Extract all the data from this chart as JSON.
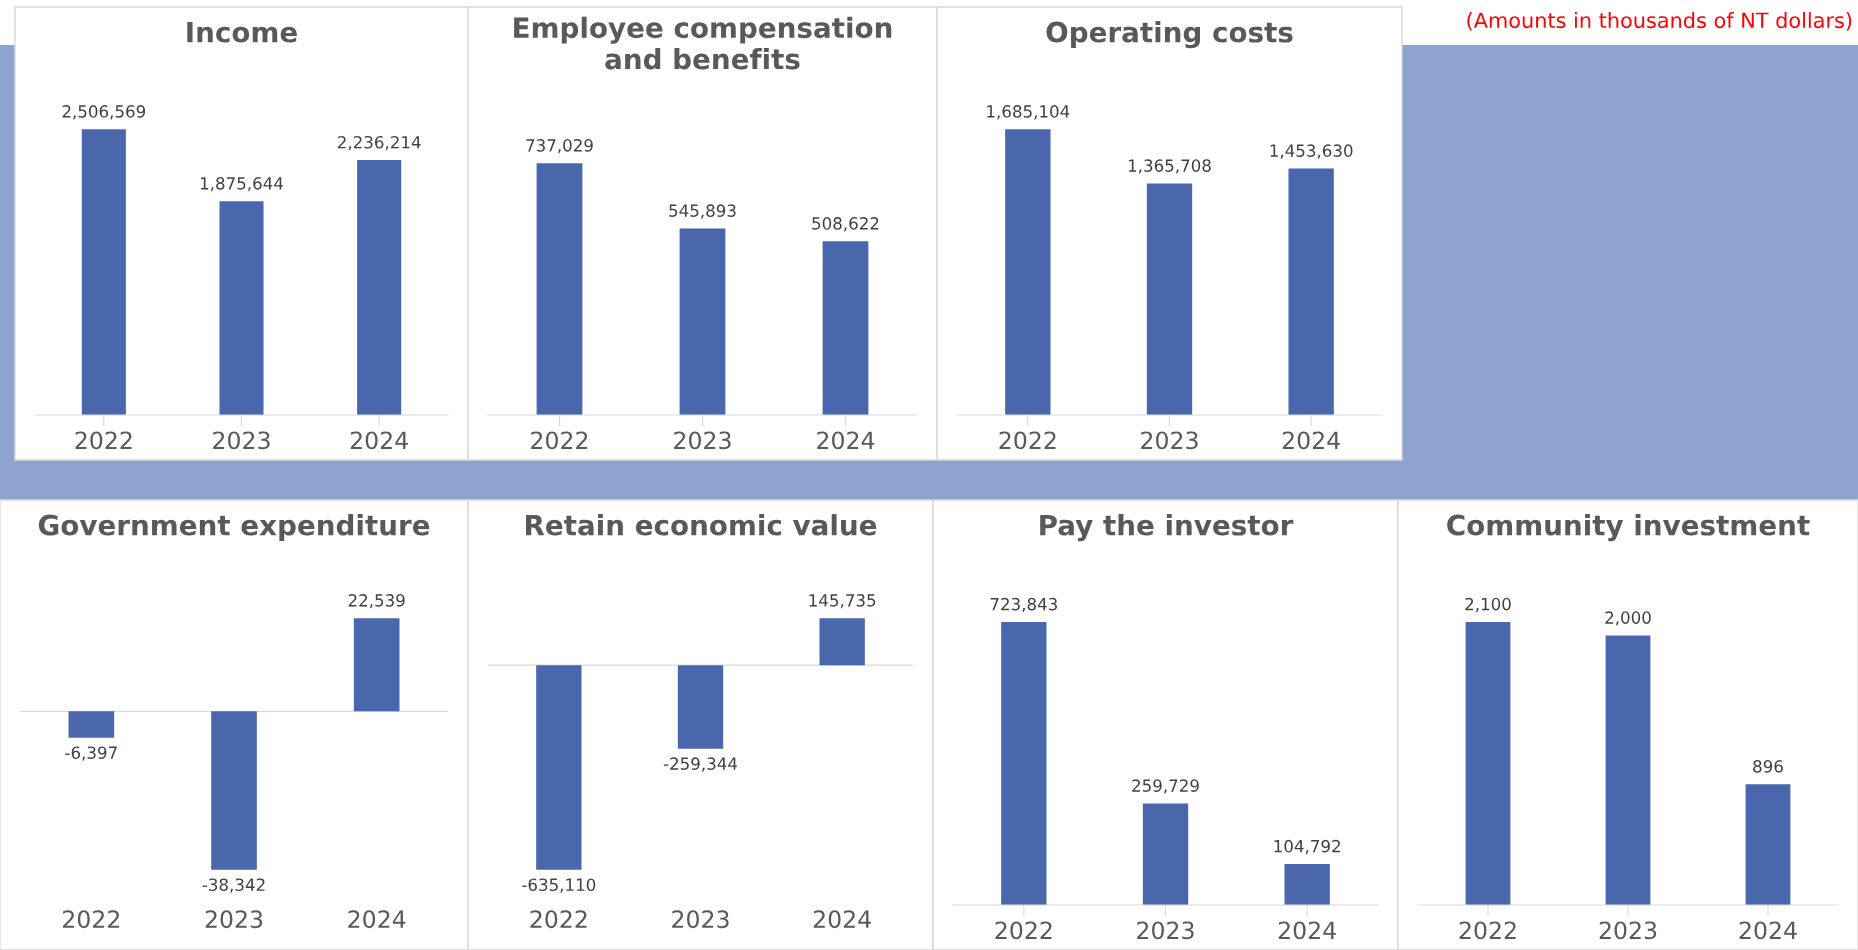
{
  "chart_data": [
    {
      "type": "bar",
      "title": "Income",
      "categories": [
        "2022",
        "2023",
        "2024"
      ],
      "values": [
        2506569,
        1875644,
        2236214
      ],
      "color": "#4a67ae",
      "value_labels": [
        "2,506,569",
        "1,875,644",
        "2,236,214"
      ],
      "annotations": [
        "(Amounts in thousands of NT dollars)"
      ]
    },
    {
      "type": "bar",
      "title": "Employee compensation\nand benefits",
      "categories": [
        "2022",
        "2023",
        "2024"
      ],
      "values": [
        737029,
        545893,
        508622
      ],
      "color": "#4a67ae",
      "value_labels": [
        "737,029",
        "545,893",
        "508,622"
      ]
    },
    {
      "type": "bar",
      "title": "Operating costs",
      "categories": [
        "2022",
        "2023",
        "2024"
      ],
      "values": [
        1685104,
        1365708,
        1453630
      ],
      "color": "#4a67ae",
      "value_labels": [
        "1,685,104",
        "1,365,708",
        "1,453,630"
      ]
    },
    {
      "type": "bar",
      "title": "Government expenditure",
      "categories": [
        "2022",
        "2023",
        "2024"
      ],
      "values": [
        -6397,
        -38342,
        22539
      ],
      "color": "#4a67ae",
      "value_labels": [
        "-6,397",
        "-38,342",
        "22,539"
      ]
    },
    {
      "type": "bar",
      "title": "Retain economic value",
      "categories": [
        "2022",
        "2023",
        "2024"
      ],
      "values": [
        -635110,
        -259344,
        145735
      ],
      "color": "#4a67ae",
      "value_labels": [
        "-635,110",
        "-259,344",
        "145,735"
      ]
    },
    {
      "type": "bar",
      "title": "Pay the investor",
      "categories": [
        "2022",
        "2023",
        "2024"
      ],
      "values": [
        723843,
        259729,
        104792
      ],
      "color": "#4a67ae",
      "value_labels": [
        "723,843",
        "259,729",
        "104,792"
      ]
    },
    {
      "type": "bar",
      "title": "Community investment",
      "categories": [
        "2022",
        "2023",
        "2024"
      ],
      "values": [
        2100,
        2000,
        896
      ],
      "color": "#4a67ae",
      "value_labels": [
        "2,100",
        "2,000",
        "896"
      ]
    }
  ]
}
